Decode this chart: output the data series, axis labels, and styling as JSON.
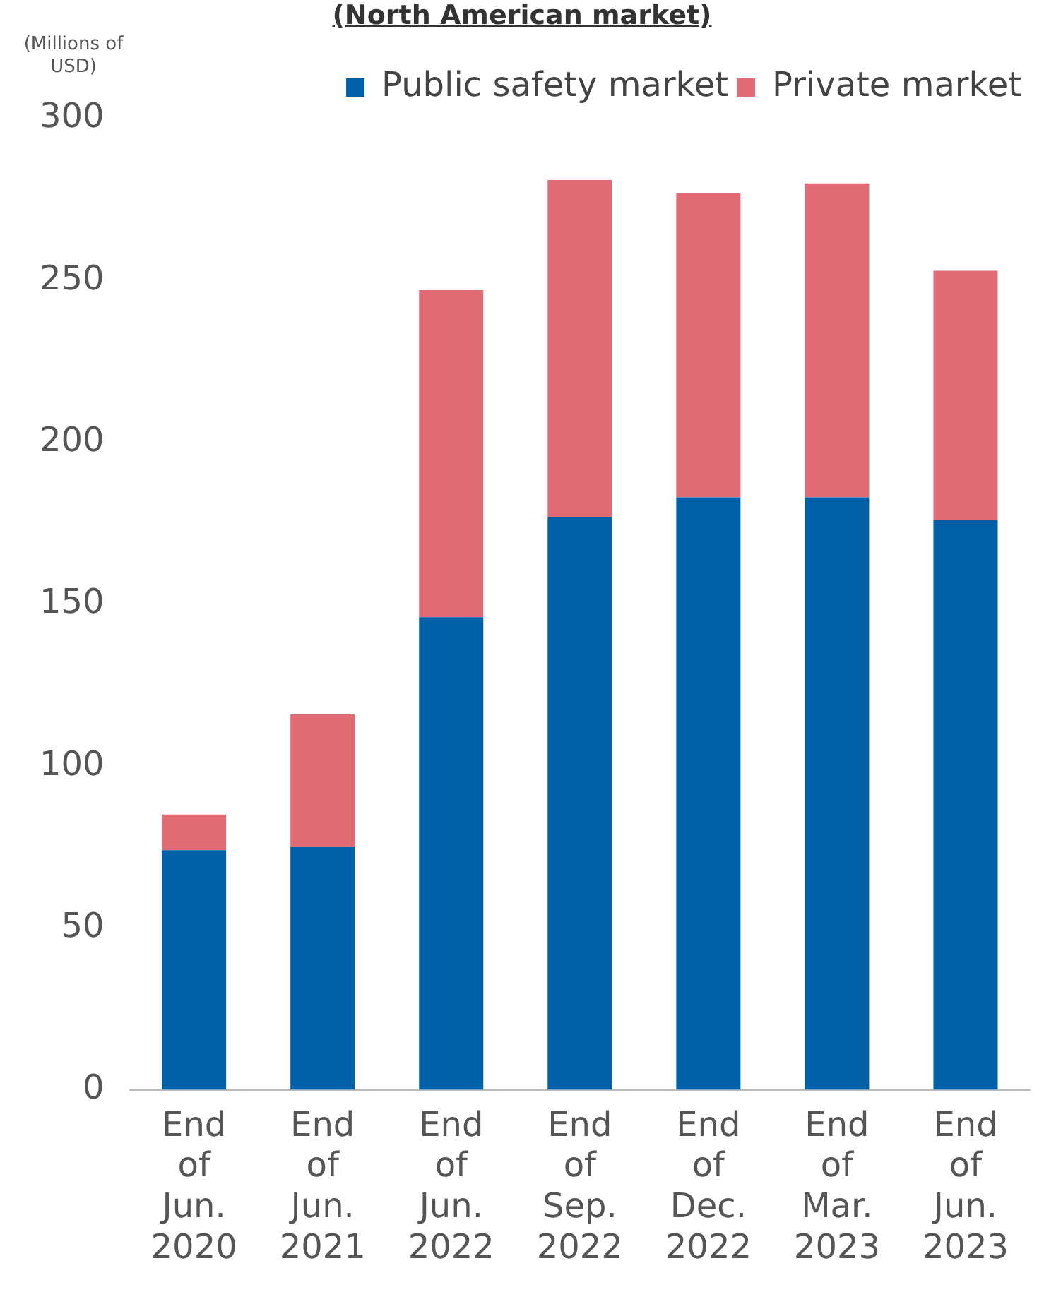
{
  "chart_data": {
    "type": "bar",
    "title": "(North American market)",
    "ylabel": "(Millions of USD)",
    "categories": [
      "End of Jun. 2020",
      "End of Jun. 2021",
      "End of Jun. 2022",
      "End of Sep. 2022",
      "End of Dec. 2022",
      "End of Mar. 2023",
      "End of Jun. 2023"
    ],
    "stacked": true,
    "series": [
      {
        "name": "Public safety market",
        "color": "#0060a8",
        "values": [
          74,
          75,
          146,
          177,
          183,
          183,
          176
        ]
      },
      {
        "name": "Private market",
        "color": "#e06b75",
        "values": [
          11,
          41,
          101,
          104,
          94,
          97,
          77
        ]
      }
    ],
    "ylim": [
      0,
      300
    ],
    "yticks": [
      0,
      50,
      100,
      150,
      200,
      250,
      300
    ],
    "grid": false,
    "legend": "top right"
  }
}
